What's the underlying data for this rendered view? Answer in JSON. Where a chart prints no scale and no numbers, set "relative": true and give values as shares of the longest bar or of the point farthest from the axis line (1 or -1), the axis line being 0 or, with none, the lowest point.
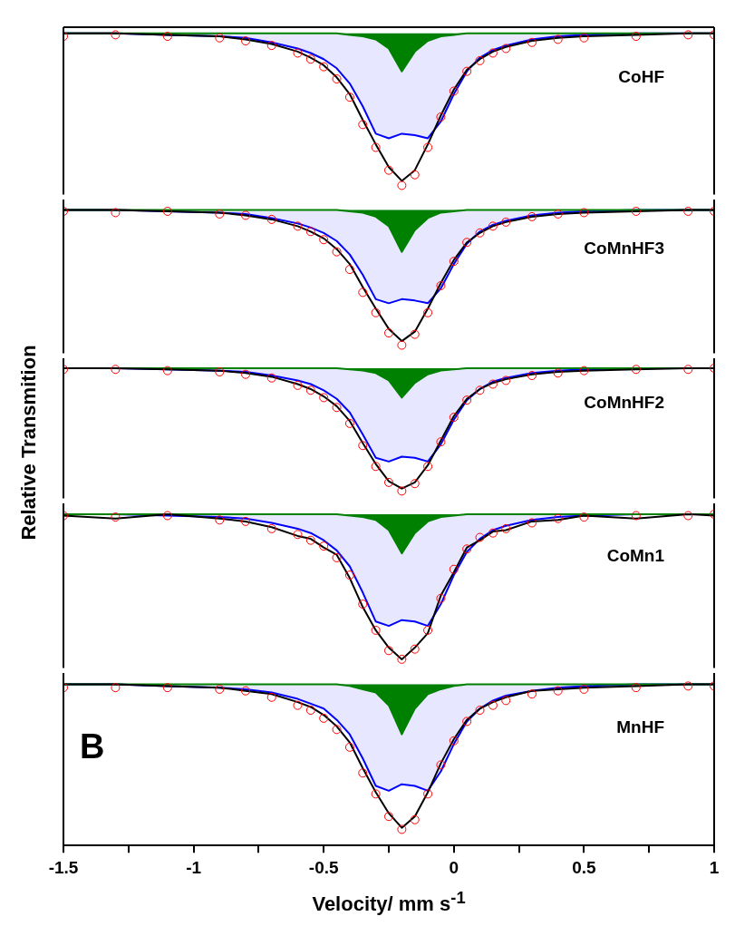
{
  "chart_data": [
    {
      "type": "line",
      "relative": true,
      "tick_labels": false,
      "xlim": [
        -1.5,
        1.0
      ],
      "x": [
        -1.5,
        -1.3,
        -1.1,
        -0.9,
        -0.8,
        -0.7,
        -0.6,
        -0.55,
        -0.5,
        -0.45,
        -0.4,
        -0.35,
        -0.3,
        -0.25,
        -0.2,
        -0.15,
        -0.1,
        -0.05,
        0,
        0.05,
        0.1,
        0.15,
        0.2,
        0.3,
        0.4,
        0.5,
        0.7,
        0.9,
        1.0
      ],
      "annotations": [
        "CoHF"
      ],
      "series": [
        {
          "type": "area",
          "color": "#0000ff",
          "values": [
            1,
            1,
            0.99,
            0.98,
            0.97,
            0.94,
            0.9,
            0.87,
            0.83,
            0.77,
            0.67,
            0.52,
            0.34,
            0.31,
            0.34,
            0.33,
            0.31,
            0.42,
            0.6,
            0.75,
            0.84,
            0.89,
            0.92,
            0.96,
            0.98,
            0.99,
            1,
            1,
            1
          ]
        },
        {
          "type": "area",
          "color": "#008000",
          "values": [
            1,
            1,
            1,
            1,
            1,
            1,
            1,
            1,
            1,
            1,
            0.99,
            0.98,
            0.96,
            0.9,
            0.75,
            0.88,
            0.95,
            0.98,
            0.99,
            1,
            1,
            1,
            1,
            1,
            1,
            1,
            1,
            1,
            1
          ]
        },
        {
          "color": "#000000",
          "values": [
            1,
            1,
            0.99,
            0.98,
            0.96,
            0.93,
            0.88,
            0.84,
            0.79,
            0.71,
            0.6,
            0.43,
            0.27,
            0.12,
            0.03,
            0.1,
            0.27,
            0.46,
            0.63,
            0.76,
            0.83,
            0.88,
            0.91,
            0.95,
            0.97,
            0.98,
            0.99,
            1,
            1
          ]
        },
        {
          "type": "scatter",
          "color": "#ff0000",
          "marker": "circle",
          "values": [
            0.98,
            0.99,
            0.98,
            0.97,
            0.95,
            0.92,
            0.87,
            0.83,
            0.78,
            0.7,
            0.58,
            0.4,
            0.25,
            0.1,
            0,
            0.07,
            0.25,
            0.45,
            0.62,
            0.75,
            0.82,
            0.87,
            0.9,
            0.94,
            0.96,
            0.97,
            0.98,
            0.99,
            0.99
          ]
        }
      ]
    },
    {
      "type": "line",
      "relative": true,
      "tick_labels": false,
      "xlim": [
        -1.5,
        1.0
      ],
      "x": [
        -1.5,
        -1.3,
        -1.1,
        -0.9,
        -0.8,
        -0.7,
        -0.6,
        -0.55,
        -0.5,
        -0.45,
        -0.4,
        -0.35,
        -0.3,
        -0.25,
        -0.2,
        -0.15,
        -0.1,
        -0.05,
        0,
        0.05,
        0.1,
        0.15,
        0.2,
        0.3,
        0.4,
        0.5,
        0.7,
        0.9,
        1.0
      ],
      "annotations": [
        "CoMnHF3"
      ],
      "series": [
        {
          "type": "area",
          "color": "#0000ff",
          "values": [
            1,
            1,
            0.99,
            0.98,
            0.97,
            0.94,
            0.9,
            0.87,
            0.83,
            0.77,
            0.67,
            0.52,
            0.34,
            0.31,
            0.34,
            0.33,
            0.31,
            0.42,
            0.6,
            0.75,
            0.84,
            0.89,
            0.92,
            0.96,
            0.98,
            0.99,
            1,
            1,
            1
          ]
        },
        {
          "type": "area",
          "color": "#008000",
          "values": [
            1,
            1,
            1,
            1,
            1,
            1,
            1,
            1,
            1,
            1,
            0.99,
            0.98,
            0.95,
            0.88,
            0.69,
            0.85,
            0.94,
            0.98,
            0.99,
            1,
            1,
            1,
            1,
            1,
            1,
            1,
            1,
            1,
            1
          ]
        },
        {
          "color": "#000000",
          "values": [
            1,
            1,
            0.99,
            0.98,
            0.96,
            0.93,
            0.88,
            0.84,
            0.79,
            0.71,
            0.6,
            0.43,
            0.27,
            0.12,
            0.03,
            0.1,
            0.27,
            0.46,
            0.63,
            0.76,
            0.83,
            0.88,
            0.91,
            0.95,
            0.97,
            0.98,
            0.99,
            1,
            1
          ]
        },
        {
          "type": "scatter",
          "color": "#ff0000",
          "marker": "circle",
          "values": [
            0.99,
            0.98,
            0.99,
            0.97,
            0.96,
            0.93,
            0.88,
            0.84,
            0.78,
            0.69,
            0.56,
            0.39,
            0.24,
            0.09,
            0,
            0.08,
            0.24,
            0.44,
            0.62,
            0.76,
            0.83,
            0.88,
            0.91,
            0.95,
            0.97,
            0.98,
            0.99,
            0.99,
            0.99
          ]
        }
      ]
    },
    {
      "type": "line",
      "relative": true,
      "tick_labels": false,
      "xlim": [
        -1.5,
        1.0
      ],
      "x": [
        -1.5,
        -1.3,
        -1.1,
        -0.9,
        -0.8,
        -0.7,
        -0.6,
        -0.55,
        -0.5,
        -0.45,
        -0.4,
        -0.35,
        -0.3,
        -0.25,
        -0.2,
        -0.15,
        -0.1,
        -0.05,
        0,
        0.05,
        0.1,
        0.15,
        0.2,
        0.3,
        0.4,
        0.5,
        0.7,
        0.9,
        1.0
      ],
      "ylabel": "Relative Transmition",
      "annotations": [
        "CoMnHF2"
      ],
      "series": [
        {
          "type": "area",
          "color": "#0000ff",
          "values": [
            1,
            1,
            0.99,
            0.98,
            0.97,
            0.94,
            0.9,
            0.87,
            0.82,
            0.75,
            0.64,
            0.46,
            0.27,
            0.24,
            0.28,
            0.27,
            0.24,
            0.38,
            0.58,
            0.74,
            0.83,
            0.89,
            0.92,
            0.96,
            0.98,
            0.99,
            1,
            1,
            1
          ]
        },
        {
          "type": "area",
          "color": "#008000",
          "values": [
            1,
            1,
            1,
            1,
            1,
            1,
            1,
            1,
            1,
            1,
            0.99,
            0.98,
            0.96,
            0.9,
            0.76,
            0.88,
            0.95,
            0.98,
            0.99,
            1,
            1,
            1,
            1,
            1,
            1,
            1,
            1,
            1,
            1
          ]
        },
        {
          "color": "#000000",
          "values": [
            1,
            1,
            0.99,
            0.98,
            0.96,
            0.93,
            0.87,
            0.83,
            0.77,
            0.69,
            0.57,
            0.39,
            0.22,
            0.08,
            0.02,
            0.07,
            0.21,
            0.41,
            0.61,
            0.75,
            0.83,
            0.88,
            0.91,
            0.95,
            0.97,
            0.98,
            0.99,
            1,
            1
          ]
        },
        {
          "type": "scatter",
          "color": "#ff0000",
          "marker": "circle",
          "values": [
            0.99,
            0.99,
            0.98,
            0.97,
            0.95,
            0.92,
            0.86,
            0.82,
            0.76,
            0.68,
            0.55,
            0.37,
            0.2,
            0.07,
            0,
            0.06,
            0.2,
            0.4,
            0.6,
            0.74,
            0.82,
            0.87,
            0.9,
            0.94,
            0.96,
            0.98,
            0.99,
            0.99,
            1
          ]
        }
      ]
    },
    {
      "type": "line",
      "relative": true,
      "tick_labels": false,
      "xlim": [
        -1.5,
        1.0
      ],
      "x": [
        -1.5,
        -1.3,
        -1.1,
        -0.9,
        -0.8,
        -0.7,
        -0.6,
        -0.55,
        -0.5,
        -0.45,
        -0.4,
        -0.35,
        -0.3,
        -0.25,
        -0.2,
        -0.15,
        -0.1,
        -0.05,
        0,
        0.05,
        0.1,
        0.15,
        0.2,
        0.3,
        0.4,
        0.5,
        0.7,
        0.9,
        1.0
      ],
      "annotations": [
        "CoMn1"
      ],
      "series": [
        {
          "type": "area",
          "color": "#0000ff",
          "values": [
            1,
            1,
            0.99,
            0.98,
            0.97,
            0.94,
            0.9,
            0.87,
            0.82,
            0.75,
            0.64,
            0.46,
            0.26,
            0.23,
            0.27,
            0.26,
            0.23,
            0.38,
            0.58,
            0.74,
            0.83,
            0.89,
            0.92,
            0.96,
            0.98,
            0.99,
            1,
            1,
            1
          ]
        },
        {
          "type": "area",
          "color": "#008000",
          "values": [
            1,
            1,
            1,
            1,
            1,
            1,
            1,
            1,
            1,
            1,
            0.99,
            0.98,
            0.96,
            0.89,
            0.73,
            0.87,
            0.95,
            0.98,
            0.99,
            1,
            1,
            1,
            1,
            1,
            1,
            1,
            1,
            1,
            1
          ]
        },
        {
          "color": "#000000",
          "values": [
            0.99,
            0.97,
            1,
            0.97,
            0.95,
            0.91,
            0.85,
            0.83,
            0.77,
            0.72,
            0.56,
            0.36,
            0.2,
            0.08,
            0,
            0.08,
            0.18,
            0.44,
            0.6,
            0.77,
            0.82,
            0.88,
            0.89,
            0.95,
            0.96,
            0.99,
            0.97,
            1,
            0.99
          ]
        },
        {
          "type": "scatter",
          "color": "#ff0000",
          "marker": "circle",
          "values": [
            0.99,
            0.98,
            0.99,
            0.96,
            0.95,
            0.9,
            0.86,
            0.82,
            0.78,
            0.7,
            0.58,
            0.38,
            0.2,
            0.06,
            0,
            0.07,
            0.2,
            0.42,
            0.62,
            0.76,
            0.84,
            0.87,
            0.9,
            0.94,
            0.97,
            0.98,
            0.99,
            0.99,
            1
          ]
        }
      ]
    },
    {
      "type": "line",
      "relative": true,
      "tick_labels": "x",
      "xlim": [
        -1.5,
        1.0
      ],
      "xticks": [
        -1.5,
        {
          "value": -1.25,
          "label": null
        },
        -1.0,
        {
          "value": -0.75,
          "label": null
        },
        -0.5,
        {
          "value": -0.25,
          "label": null
        },
        0.0,
        {
          "value": 0.25,
          "label": null
        },
        0.5,
        {
          "value": 0.75,
          "label": null
        },
        1.0
      ],
      "x": [
        -1.5,
        -1.3,
        -1.1,
        -0.9,
        -0.8,
        -0.7,
        -0.6,
        -0.55,
        -0.5,
        -0.45,
        -0.4,
        -0.35,
        -0.3,
        -0.25,
        -0.2,
        -0.15,
        -0.1,
        -0.05,
        0,
        0.05,
        0.1,
        0.15,
        0.2,
        0.3,
        0.4,
        0.5,
        0.7,
        0.9,
        1.0
      ],
      "xlabel": "Velocity/ mm s$^{-1}$",
      "annotations": [
        "MnHF",
        "B"
      ],
      "series": [
        {
          "type": "area",
          "color": "#0000ff",
          "values": [
            1,
            1,
            0.99,
            0.98,
            0.97,
            0.95,
            0.91,
            0.88,
            0.85,
            0.78,
            0.69,
            0.54,
            0.37,
            0.34,
            0.38,
            0.37,
            0.34,
            0.46,
            0.63,
            0.77,
            0.85,
            0.9,
            0.93,
            0.96,
            0.98,
            0.99,
            1,
            1,
            1
          ]
        },
        {
          "type": "area",
          "color": "#008000",
          "values": [
            1,
            1,
            1,
            1,
            1,
            1,
            1,
            1,
            1,
            1,
            0.99,
            0.97,
            0.95,
            0.87,
            0.69,
            0.85,
            0.94,
            0.97,
            0.99,
            1,
            1,
            1,
            1,
            1,
            1,
            1,
            1,
            1,
            1
          ]
        },
        {
          "color": "#000000",
          "values": [
            1,
            1,
            0.99,
            0.98,
            0.96,
            0.94,
            0.89,
            0.86,
            0.81,
            0.74,
            0.64,
            0.48,
            0.33,
            0.2,
            0.11,
            0.18,
            0.33,
            0.51,
            0.66,
            0.78,
            0.85,
            0.89,
            0.92,
            0.96,
            0.97,
            0.98,
            0.99,
            1,
            1
          ]
        },
        {
          "type": "scatter",
          "color": "#ff0000",
          "marker": "circle",
          "values": [
            0.98,
            0.98,
            0.98,
            0.97,
            0.96,
            0.92,
            0.87,
            0.84,
            0.79,
            0.72,
            0.61,
            0.45,
            0.32,
            0.18,
            0.1,
            0.16,
            0.32,
            0.5,
            0.65,
            0.77,
            0.84,
            0.87,
            0.9,
            0.94,
            0.96,
            0.97,
            0.98,
            0.99,
            0.99
          ]
        }
      ]
    }
  ]
}
